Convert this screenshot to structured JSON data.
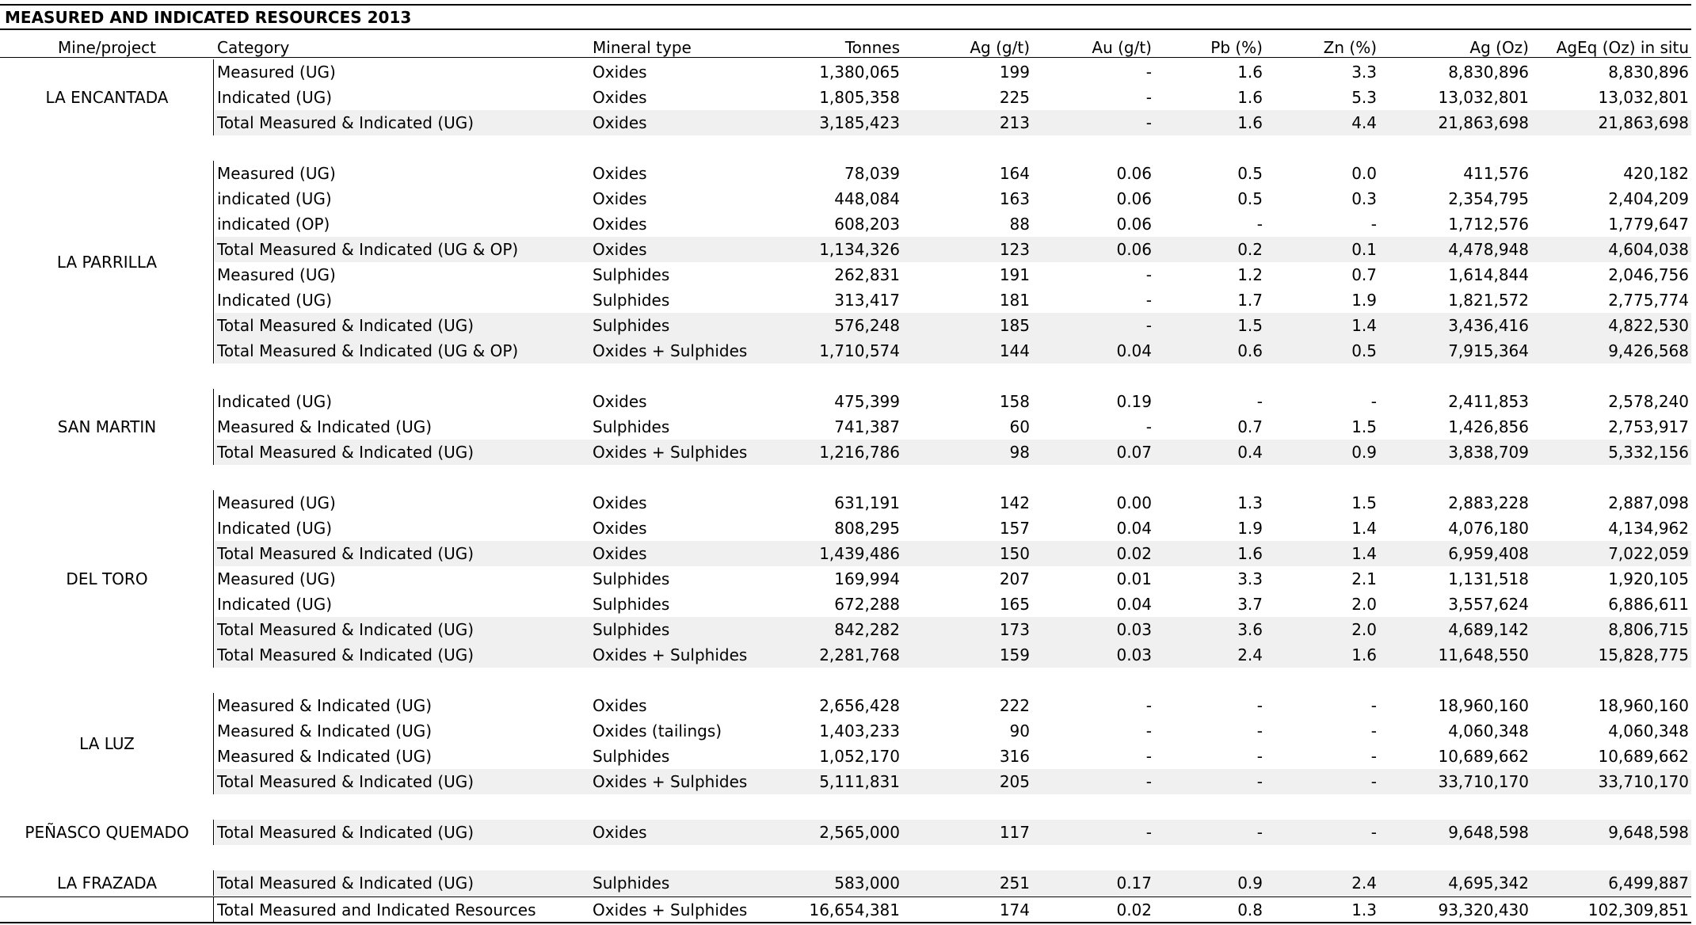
{
  "title": "MEASURED AND INDICATED RESOURCES 2013",
  "headers": {
    "mine": "Mine/project",
    "category": "Category",
    "mineral": "Mineral type",
    "tonnes": "Tonnes",
    "ag": "Ag (g/t)",
    "au": "Au (g/t)",
    "pb": "Pb (%)",
    "zn": "Zn (%)",
    "agoz": "Ag (Oz)",
    "ageq": "AgEq (Oz) in situ"
  },
  "groups": [
    {
      "mine": "LA ENCANTADA",
      "rows": [
        {
          "category": "Measured (UG)",
          "mineral": "Oxides",
          "tonnes": "1,380,065",
          "ag": "199",
          "au": "-",
          "pb": "1.6",
          "zn": "3.3",
          "agoz": "8,830,896",
          "ageq": "8,830,896",
          "shade": false
        },
        {
          "category": "Indicated (UG)",
          "mineral": "Oxides",
          "tonnes": "1,805,358",
          "ag": "225",
          "au": "-",
          "pb": "1.6",
          "zn": "5.3",
          "agoz": "13,032,801",
          "ageq": "13,032,801",
          "shade": false
        },
        {
          "category": "Total Measured & Indicated  (UG)",
          "mineral": "Oxides",
          "tonnes": "3,185,423",
          "ag": "213",
          "au": "-",
          "pb": "1.6",
          "zn": "4.4",
          "agoz": "21,863,698",
          "ageq": "21,863,698",
          "shade": true
        }
      ]
    },
    {
      "mine": "LA PARRILLA",
      "rows": [
        {
          "category": "Measured (UG)",
          "mineral": "Oxides",
          "tonnes": "78,039",
          "ag": "164",
          "au": "0.06",
          "pb": "0.5",
          "zn": "0.0",
          "agoz": "411,576",
          "ageq": "420,182",
          "shade": false
        },
        {
          "category": "indicated (UG)",
          "mineral": "Oxides",
          "tonnes": "448,084",
          "ag": "163",
          "au": "0.06",
          "pb": "0.5",
          "zn": "0.3",
          "agoz": "2,354,795",
          "ageq": "2,404,209",
          "shade": false
        },
        {
          "category": "indicated (OP)",
          "mineral": "Oxides",
          "tonnes": "608,203",
          "ag": "88",
          "au": "0.06",
          "pb": "-",
          "zn": "-",
          "agoz": "1,712,576",
          "ageq": "1,779,647",
          "shade": false
        },
        {
          "category": "Total Measured & Indicated (UG & OP)",
          "mineral": "Oxides",
          "tonnes": "1,134,326",
          "ag": "123",
          "au": "0.06",
          "pb": "0.2",
          "zn": "0.1",
          "agoz": "4,478,948",
          "ageq": "4,604,038",
          "shade": true
        },
        {
          "category": "Measured (UG)",
          "mineral": "Sulphides",
          "tonnes": "262,831",
          "ag": "191",
          "au": "-",
          "pb": "1.2",
          "zn": "0.7",
          "agoz": "1,614,844",
          "ageq": "2,046,756",
          "shade": false
        },
        {
          "category": "Indicated (UG)",
          "mineral": "Sulphides",
          "tonnes": "313,417",
          "ag": "181",
          "au": "-",
          "pb": "1.7",
          "zn": "1.9",
          "agoz": "1,821,572",
          "ageq": "2,775,774",
          "shade": false
        },
        {
          "category": "Total Measured & Indicated (UG)",
          "mineral": "Sulphides",
          "tonnes": "576,248",
          "ag": "185",
          "au": "-",
          "pb": "1.5",
          "zn": "1.4",
          "agoz": "3,436,416",
          "ageq": "4,822,530",
          "shade": true
        },
        {
          "category": "Total Measured & Indicated (UG & OP)",
          "mineral": "Oxides + Sulphides",
          "tonnes": "1,710,574",
          "ag": "144",
          "au": "0.04",
          "pb": "0.6",
          "zn": "0.5",
          "agoz": "7,915,364",
          "ageq": "9,426,568",
          "shade": true
        }
      ]
    },
    {
      "mine": "SAN MARTIN",
      "rows": [
        {
          "category": "Indicated (UG)",
          "mineral": "Oxides",
          "tonnes": "475,399",
          "ag": "158",
          "au": "0.19",
          "pb": "-",
          "zn": "-",
          "agoz": "2,411,853",
          "ageq": "2,578,240",
          "shade": false
        },
        {
          "category": "Measured & Indicated (UG)",
          "mineral": "Sulphides",
          "tonnes": "741,387",
          "ag": "60",
          "au": "-",
          "pb": "0.7",
          "zn": "1.5",
          "agoz": "1,426,856",
          "ageq": "2,753,917",
          "shade": false
        },
        {
          "category": "Total Measured & Indicated (UG)",
          "mineral": "Oxides + Sulphides",
          "tonnes": "1,216,786",
          "ag": "98",
          "au": "0.07",
          "pb": "0.4",
          "zn": "0.9",
          "agoz": "3,838,709",
          "ageq": "5,332,156",
          "shade": true
        }
      ]
    },
    {
      "mine": "DEL TORO",
      "rows": [
        {
          "category": "Measured (UG)",
          "mineral": "Oxides",
          "tonnes": "631,191",
          "ag": "142",
          "au": "0.00",
          "pb": "1.3",
          "zn": "1.5",
          "agoz": "2,883,228",
          "ageq": "2,887,098",
          "shade": false
        },
        {
          "category": "Indicated (UG)",
          "mineral": "Oxides",
          "tonnes": "808,295",
          "ag": "157",
          "au": "0.04",
          "pb": "1.9",
          "zn": "1.4",
          "agoz": "4,076,180",
          "ageq": "4,134,962",
          "shade": false
        },
        {
          "category": "Total Measured & Indicated (UG)",
          "mineral": "Oxides",
          "tonnes": "1,439,486",
          "ag": "150",
          "au": "0.02",
          "pb": "1.6",
          "zn": "1.4",
          "agoz": "6,959,408",
          "ageq": "7,022,059",
          "shade": true
        },
        {
          "category": "Measured (UG)",
          "mineral": "Sulphides",
          "tonnes": "169,994",
          "ag": "207",
          "au": "0.01",
          "pb": "3.3",
          "zn": "2.1",
          "agoz": "1,131,518",
          "ageq": "1,920,105",
          "shade": false
        },
        {
          "category": "Indicated (UG)",
          "mineral": "Sulphides",
          "tonnes": "672,288",
          "ag": "165",
          "au": "0.04",
          "pb": "3.7",
          "zn": "2.0",
          "agoz": "3,557,624",
          "ageq": "6,886,611",
          "shade": false
        },
        {
          "category": "Total Measured & Indicated (UG)",
          "mineral": "Sulphides",
          "tonnes": "842,282",
          "ag": "173",
          "au": "0.03",
          "pb": "3.6",
          "zn": "2.0",
          "agoz": "4,689,142",
          "ageq": "8,806,715",
          "shade": true
        },
        {
          "category": "Total Measured & Indicated (UG)",
          "mineral": "Oxides + Sulphides",
          "tonnes": "2,281,768",
          "ag": "159",
          "au": "0.03",
          "pb": "2.4",
          "zn": "1.6",
          "agoz": "11,648,550",
          "ageq": "15,828,775",
          "shade": true
        }
      ]
    },
    {
      "mine": "LA LUZ",
      "rows": [
        {
          "category": "Measured & Indicated (UG)",
          "mineral": "Oxides",
          "tonnes": "2,656,428",
          "ag": "222",
          "au": "-",
          "pb": "-",
          "zn": "-",
          "agoz": "18,960,160",
          "ageq": "18,960,160",
          "shade": false
        },
        {
          "category": "Measured & Indicated (UG)",
          "mineral": "Oxides (tailings)",
          "tonnes": "1,403,233",
          "ag": "90",
          "au": "-",
          "pb": "-",
          "zn": "-",
          "agoz": "4,060,348",
          "ageq": "4,060,348",
          "shade": false
        },
        {
          "category": "Measured & Indicated (UG)",
          "mineral": "Sulphides",
          "tonnes": "1,052,170",
          "ag": "316",
          "au": "-",
          "pb": "-",
          "zn": "-",
          "agoz": "10,689,662",
          "ageq": "10,689,662",
          "shade": false
        },
        {
          "category": "Total Measured & Indicated (UG)",
          "mineral": "Oxides + Sulphides",
          "tonnes": "5,111,831",
          "ag": "205",
          "au": "-",
          "pb": "-",
          "zn": "-",
          "agoz": "33,710,170",
          "ageq": "33,710,170",
          "shade": true
        }
      ]
    },
    {
      "mine": "PEÑASCO QUEMADO",
      "rows": [
        {
          "category": "Total Measured & Indicated (UG)",
          "mineral": "Oxides",
          "tonnes": "2,565,000",
          "ag": "117",
          "au": "-",
          "pb": "-",
          "zn": "-",
          "agoz": "9,648,598",
          "ageq": "9,648,598",
          "shade": true
        }
      ]
    },
    {
      "mine": "LA FRAZADA",
      "rows": [
        {
          "category": "Total Measured & Indicated (UG)",
          "mineral": "Sulphides",
          "tonnes": "583,000",
          "ag": "251",
          "au": "0.17",
          "pb": "0.9",
          "zn": "2.4",
          "agoz": "4,695,342",
          "ageq": "6,499,887",
          "shade": true
        }
      ]
    }
  ],
  "total": {
    "category": "Total Measured and Indicated Resources",
    "mineral": "Oxides + Sulphides",
    "tonnes": "16,654,381",
    "ag": "174",
    "au": "0.02",
    "pb": "0.8",
    "zn": "1.3",
    "agoz": "93,320,430",
    "ageq": "102,309,851"
  }
}
